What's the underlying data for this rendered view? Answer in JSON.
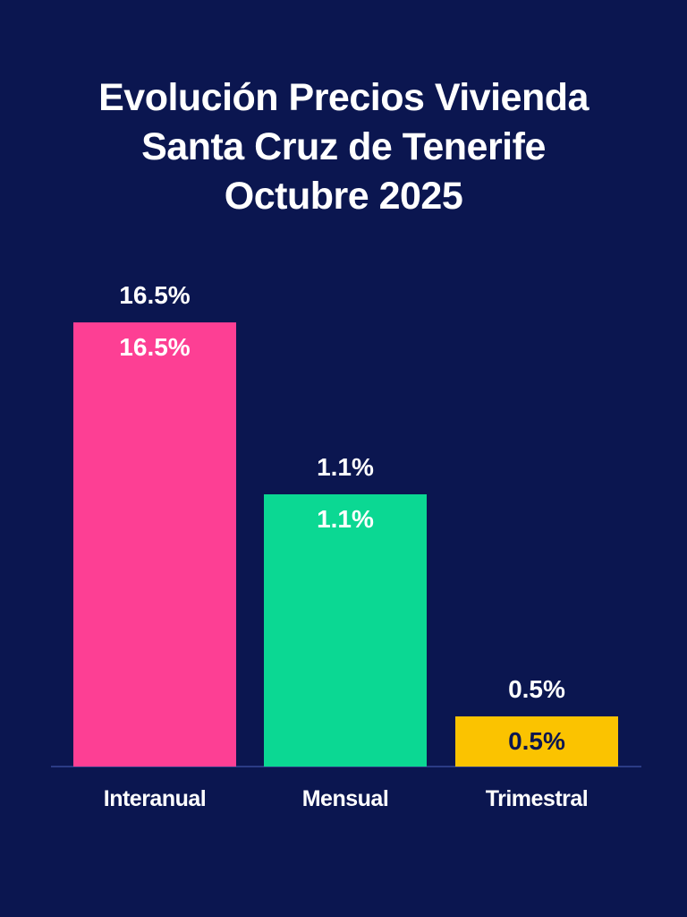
{
  "chart_data": {
    "type": "bar",
    "title": [
      "Evolución Precios Vivienda",
      "Santa Cruz de Tenerife",
      "Octubre 2025"
    ],
    "categories": [
      "Interanual",
      "Mensual",
      "Trimestral"
    ],
    "values": [
      16.5,
      1.1,
      0.5
    ],
    "value_labels": [
      "16.5%",
      "1.1%",
      "0.5%"
    ],
    "colors": [
      "#fd3f94",
      "#0bd893",
      "#fbc300"
    ],
    "background": "#0b1650",
    "xlabel": "",
    "ylabel": "",
    "grid": false,
    "legend": "none"
  }
}
